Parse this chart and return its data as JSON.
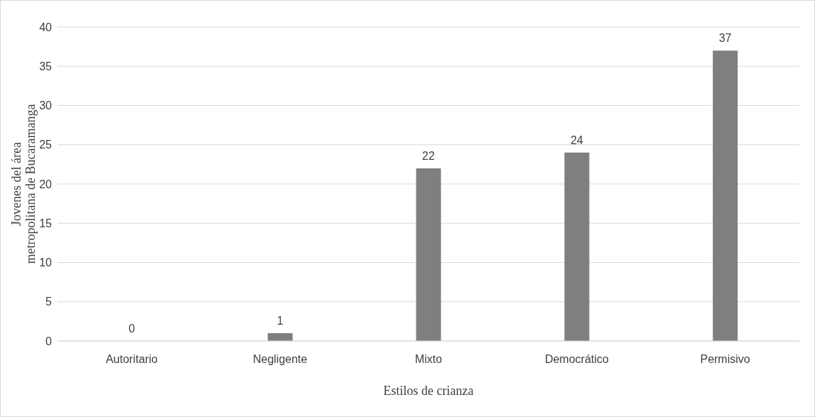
{
  "chart_data": {
    "type": "bar",
    "xlabel": "Estilos de crianza",
    "ylabel": "Jovenes del área metropolitana de Bucaramanga",
    "categories": [
      "Autoritario",
      "Negligente",
      "Mixto",
      "Democrático",
      "Permisivo"
    ],
    "values": [
      0,
      1,
      22,
      24,
      37
    ],
    "color": "#7f7f7f",
    "ylim": [
      0,
      40
    ],
    "yticks": [
      0,
      5,
      10,
      15,
      20,
      25,
      30,
      35,
      40
    ],
    "grid": "y",
    "data_labels": true,
    "legend": false
  }
}
